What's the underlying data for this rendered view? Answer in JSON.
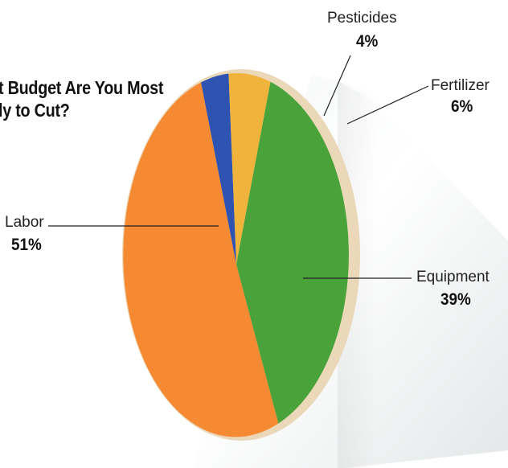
{
  "title_lines": [
    "t Budget Are You Most",
    "ly to Cut?"
  ],
  "colors": {
    "Labor": "#f58a33",
    "Equipment": "#4aa33a",
    "Pesticides": "#2f53b0",
    "Fertilizer": "#f0b43c"
  },
  "chart_data": {
    "type": "pie",
    "title": "t Budget Are You Most ly to Cut?",
    "slices": [
      {
        "label": "Pesticides",
        "value": 4,
        "display": "4%"
      },
      {
        "label": "Fertilizer",
        "value": 6,
        "display": "6%"
      },
      {
        "label": "Equipment",
        "value": 39,
        "display": "39%"
      },
      {
        "label": "Labor",
        "value": 51,
        "display": "51%"
      }
    ]
  }
}
